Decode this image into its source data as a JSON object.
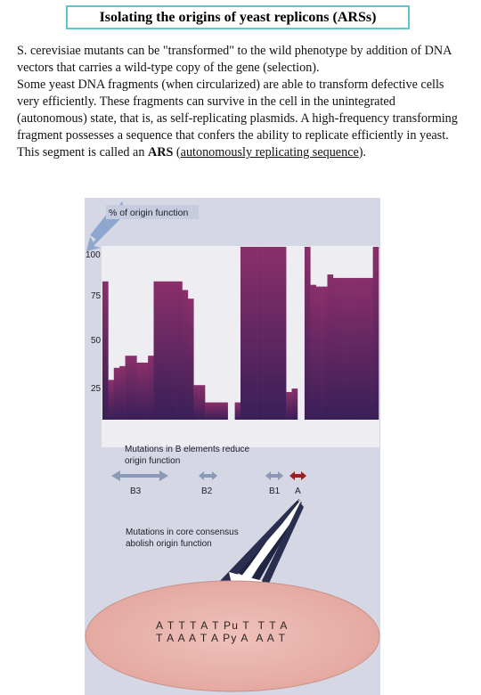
{
  "title": "Isolating the origins of yeast replicons (ARSs)",
  "paragraph1": "S. cerevisiae mutants can be \"transformed\" to the wild phenotype by addition of DNA vectors that carries a wild-type copy of the gene (selection).",
  "paragraph2_before": "Some yeast DNA fragments (when circularized) are able to transform defective cells very efficiently. These fragments can survive in the cell in the unintegrated (autonomous) state, that is, as self-replicating plasmids. A high-frequency transforming fragment possesses a sequence that confers the ability to replicate efficiently in yeast. This segment is called an ",
  "ars_bold": "ARS",
  "paren_open": " (",
  "ars_definition": "autonomously replicating sequence",
  "paren_close": ").",
  "figure": {
    "y_axis_title": "% of origin function",
    "y_ticks": [
      "100",
      "75",
      "50",
      "25"
    ],
    "b_elements_caption_line1": "Mutations in B elements reduce",
    "b_elements_caption_line2": "origin function",
    "element_labels": [
      "B3",
      "B2",
      "B1",
      "A"
    ],
    "core_caption_line1": "Mutations in core consensus",
    "core_caption_line2": "abolish origin function",
    "sequence_top": "A T T T A T Pu T  T T A",
    "sequence_bottom": "T A A A T A Py A  A A T",
    "colors": {
      "panel_bg": "#d5d8e4",
      "plot_bg": "#eeeef2",
      "bar_top": "#8a2f6a",
      "bar_bottom": "#3a1f57",
      "arrow_gray": "#8a9ab8",
      "arrow_red": "#9b1f1f",
      "oval_fill": "#e8b4ad",
      "blue_arrow": "#8fa6cf"
    }
  },
  "chart_data": {
    "type": "bar",
    "title": "",
    "ylabel": "% of origin function",
    "ylim": [
      0,
      100
    ],
    "gap_positions": [
      {
        "after_bar_index": 21,
        "description": "white gap in plot between groups"
      }
    ],
    "values": [
      80,
      23,
      30,
      31,
      37,
      37,
      33,
      33,
      37,
      80,
      80,
      80,
      80,
      80,
      75,
      70,
      20,
      20,
      10,
      10,
      10,
      10,
      10,
      100,
      100,
      100,
      100,
      100,
      100,
      100,
      100,
      16,
      18,
      100,
      78,
      77,
      77,
      84,
      82,
      82,
      82,
      82,
      82,
      82,
      82,
      100
    ]
  }
}
